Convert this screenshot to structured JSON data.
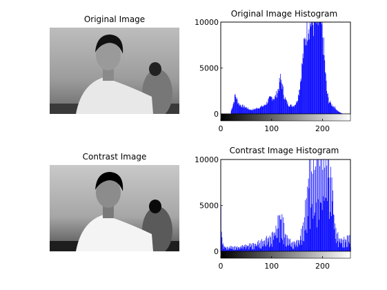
{
  "chart_data": [
    {
      "type": "image",
      "title": "Original Image",
      "description": "grayscale photo of a young man in a white shirt in a room, another person in the background"
    },
    {
      "type": "bar",
      "title": "Original Image Histogram",
      "xlim": [
        0,
        255
      ],
      "ylim": [
        0,
        10000
      ],
      "xticks": [
        "0",
        "100",
        "200"
      ],
      "yticks": [
        "0",
        "5000",
        "10000"
      ],
      "bar_color": "#0000ff",
      "colorbar": "grayscale ramp 0 (black) to 255 (white)",
      "profile": [
        {
          "x": 20,
          "y": 350
        },
        {
          "x": 23,
          "y": 900
        },
        {
          "x": 26,
          "y": 1500
        },
        {
          "x": 28,
          "y": 2100
        },
        {
          "x": 31,
          "y": 1600
        },
        {
          "x": 35,
          "y": 1100
        },
        {
          "x": 40,
          "y": 900
        },
        {
          "x": 45,
          "y": 800
        },
        {
          "x": 50,
          "y": 700
        },
        {
          "x": 55,
          "y": 500
        },
        {
          "x": 60,
          "y": 450
        },
        {
          "x": 65,
          "y": 500
        },
        {
          "x": 70,
          "y": 600
        },
        {
          "x": 75,
          "y": 700
        },
        {
          "x": 80,
          "y": 800
        },
        {
          "x": 85,
          "y": 900
        },
        {
          "x": 90,
          "y": 1200
        },
        {
          "x": 95,
          "y": 1600
        },
        {
          "x": 100,
          "y": 1800
        },
        {
          "x": 105,
          "y": 1700
        },
        {
          "x": 110,
          "y": 2200
        },
        {
          "x": 114,
          "y": 3000
        },
        {
          "x": 117,
          "y": 3800
        },
        {
          "x": 120,
          "y": 3200
        },
        {
          "x": 124,
          "y": 2000
        },
        {
          "x": 128,
          "y": 1400
        },
        {
          "x": 133,
          "y": 1000
        },
        {
          "x": 138,
          "y": 900
        },
        {
          "x": 143,
          "y": 900
        },
        {
          "x": 148,
          "y": 1200
        },
        {
          "x": 152,
          "y": 2000
        },
        {
          "x": 156,
          "y": 3500
        },
        {
          "x": 160,
          "y": 5500
        },
        {
          "x": 164,
          "y": 7500
        },
        {
          "x": 168,
          "y": 9000
        },
        {
          "x": 172,
          "y": 10000
        },
        {
          "x": 176,
          "y": 10000
        },
        {
          "x": 180,
          "y": 10000
        },
        {
          "x": 184,
          "y": 10000
        },
        {
          "x": 188,
          "y": 10000
        },
        {
          "x": 192,
          "y": 10000
        },
        {
          "x": 196,
          "y": 10000
        },
        {
          "x": 200,
          "y": 8500
        },
        {
          "x": 204,
          "y": 5500
        },
        {
          "x": 208,
          "y": 2500
        },
        {
          "x": 212,
          "y": 1400
        },
        {
          "x": 218,
          "y": 1000
        },
        {
          "x": 224,
          "y": 700
        },
        {
          "x": 230,
          "y": 300
        },
        {
          "x": 236,
          "y": 100
        },
        {
          "x": 240,
          "y": 30
        },
        {
          "x": 245,
          "y": 0
        }
      ]
    },
    {
      "type": "image",
      "title": "Contrast Image",
      "description": "contrast-adjusted grayscale photo of the same young man"
    },
    {
      "type": "bar",
      "title": "Contrast Image Histogram",
      "xlim": [
        0,
        255
      ],
      "ylim": [
        0,
        10000
      ],
      "xticks": [
        "0",
        "100",
        "200"
      ],
      "yticks": [
        "0",
        "5000",
        "10000"
      ],
      "bar_color": "#0000ff",
      "colorbar": "grayscale ramp 0 (black) to 255 (white)",
      "profile": [
        {
          "x": 0,
          "y": 4500
        },
        {
          "x": 2,
          "y": 1500
        },
        {
          "x": 5,
          "y": 700
        },
        {
          "x": 10,
          "y": 500
        },
        {
          "x": 20,
          "y": 500
        },
        {
          "x": 30,
          "y": 500
        },
        {
          "x": 40,
          "y": 600
        },
        {
          "x": 50,
          "y": 700
        },
        {
          "x": 60,
          "y": 800
        },
        {
          "x": 70,
          "y": 900
        },
        {
          "x": 80,
          "y": 1200
        },
        {
          "x": 90,
          "y": 1600
        },
        {
          "x": 100,
          "y": 1900
        },
        {
          "x": 105,
          "y": 2200
        },
        {
          "x": 110,
          "y": 3000
        },
        {
          "x": 114,
          "y": 3800
        },
        {
          "x": 118,
          "y": 4200
        },
        {
          "x": 122,
          "y": 3200
        },
        {
          "x": 126,
          "y": 2000
        },
        {
          "x": 132,
          "y": 1300
        },
        {
          "x": 140,
          "y": 1000
        },
        {
          "x": 148,
          "y": 1000
        },
        {
          "x": 155,
          "y": 1400
        },
        {
          "x": 160,
          "y": 2500
        },
        {
          "x": 165,
          "y": 4500
        },
        {
          "x": 170,
          "y": 7000
        },
        {
          "x": 175,
          "y": 9000
        },
        {
          "x": 180,
          "y": 10000
        },
        {
          "x": 185,
          "y": 10000
        },
        {
          "x": 190,
          "y": 10000
        },
        {
          "x": 195,
          "y": 10000
        },
        {
          "x": 200,
          "y": 10000
        },
        {
          "x": 205,
          "y": 10000
        },
        {
          "x": 210,
          "y": 10000
        },
        {
          "x": 215,
          "y": 9000
        },
        {
          "x": 220,
          "y": 6000
        },
        {
          "x": 225,
          "y": 3000
        },
        {
          "x": 230,
          "y": 1800
        },
        {
          "x": 235,
          "y": 1500
        },
        {
          "x": 240,
          "y": 1300
        },
        {
          "x": 245,
          "y": 1400
        },
        {
          "x": 250,
          "y": 1800
        },
        {
          "x": 255,
          "y": 1500
        }
      ]
    }
  ]
}
